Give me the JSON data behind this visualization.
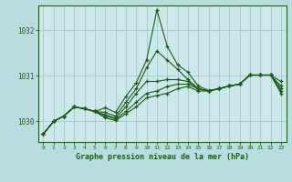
{
  "background_color": "#b8dde0",
  "plot_bg_color": "#cce8ea",
  "grid_color": "#9ecbce",
  "line_color": "#1a5c1a",
  "marker_color": "#1a5c1a",
  "xlabel": "Graphe pression niveau de la mer (hPa)",
  "xlim": [
    -0.5,
    23.5
  ],
  "ylim": [
    1029.55,
    1032.55
  ],
  "yticks": [
    1030,
    1031,
    1032
  ],
  "xticks": [
    0,
    1,
    2,
    3,
    4,
    5,
    6,
    7,
    8,
    9,
    10,
    11,
    12,
    13,
    14,
    15,
    16,
    17,
    18,
    19,
    20,
    21,
    22,
    23
  ],
  "series": [
    [
      1029.72,
      1030.0,
      1030.12,
      1030.32,
      1030.28,
      1030.22,
      1030.3,
      1030.2,
      1030.55,
      1030.85,
      1031.35,
      1032.45,
      1031.65,
      1031.25,
      1031.08,
      1030.78,
      1030.68,
      1030.72,
      1030.78,
      1030.82,
      1031.02,
      1031.02,
      1031.02,
      1030.88
    ],
    [
      1029.72,
      1030.0,
      1030.12,
      1030.32,
      1030.28,
      1030.22,
      1030.2,
      1030.12,
      1030.42,
      1030.72,
      1031.18,
      1031.55,
      1031.35,
      1031.15,
      1030.92,
      1030.72,
      1030.67,
      1030.72,
      1030.78,
      1030.82,
      1031.02,
      1031.02,
      1031.02,
      1030.78
    ],
    [
      1029.72,
      1030.0,
      1030.12,
      1030.32,
      1030.28,
      1030.22,
      1030.15,
      1030.08,
      1030.32,
      1030.62,
      1030.88,
      1030.88,
      1030.92,
      1030.92,
      1030.88,
      1030.72,
      1030.67,
      1030.72,
      1030.78,
      1030.82,
      1031.02,
      1031.02,
      1031.02,
      1030.72
    ],
    [
      1029.72,
      1030.0,
      1030.12,
      1030.32,
      1030.28,
      1030.22,
      1030.12,
      1030.05,
      1030.22,
      1030.42,
      1030.62,
      1030.67,
      1030.77,
      1030.82,
      1030.82,
      1030.72,
      1030.67,
      1030.72,
      1030.78,
      1030.82,
      1031.02,
      1031.02,
      1031.02,
      1030.67
    ],
    [
      1029.72,
      1030.0,
      1030.12,
      1030.32,
      1030.28,
      1030.22,
      1030.08,
      1030.02,
      1030.17,
      1030.32,
      1030.52,
      1030.57,
      1030.62,
      1030.72,
      1030.77,
      1030.67,
      1030.67,
      1030.72,
      1030.78,
      1030.82,
      1031.02,
      1031.02,
      1031.02,
      1030.62
    ]
  ]
}
